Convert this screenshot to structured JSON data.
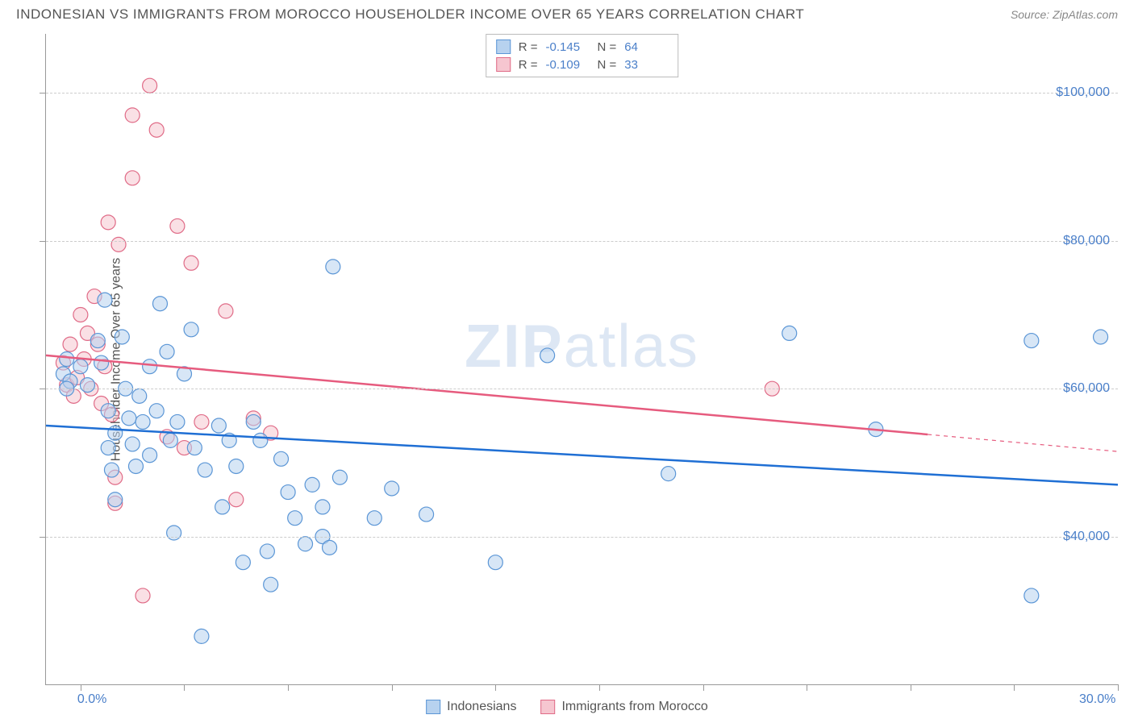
{
  "title": "INDONESIAN VS IMMIGRANTS FROM MOROCCO HOUSEHOLDER INCOME OVER 65 YEARS CORRELATION CHART",
  "source": "Source: ZipAtlas.com",
  "watermark": "ZIPatlas",
  "y_axis_title": "Householder Income Over 65 years",
  "colors": {
    "series_a_fill": "#b7d2ef",
    "series_a_stroke": "#5b96d6",
    "series_a_line": "#1f6fd4",
    "series_b_fill": "#f6c6d0",
    "series_b_stroke": "#e06b87",
    "series_b_line": "#e65b7e",
    "grid": "#cccccc",
    "axis": "#999999",
    "tick_text": "#4a7fc9",
    "text": "#555555"
  },
  "chart": {
    "type": "scatter",
    "xlim": [
      -1,
      30
    ],
    "ylim": [
      20000,
      108000
    ],
    "x_ticks": [
      0,
      3,
      6,
      9,
      12,
      15,
      18,
      21,
      24,
      27,
      30
    ],
    "x_tick_labels": {
      "0": "0.0%",
      "30": "30.0%"
    },
    "y_grid": [
      40000,
      60000,
      80000,
      100000
    ],
    "y_grid_labels": [
      "$40,000",
      "$60,000",
      "$80,000",
      "$100,000"
    ],
    "marker_radius": 9,
    "marker_opacity": 0.55,
    "line_width": 2.5
  },
  "stats": {
    "a": {
      "R": "-0.145",
      "N": "64"
    },
    "b": {
      "R": "-0.109",
      "N": "33"
    }
  },
  "legend": {
    "a": "Indonesians",
    "b": "Immigrants from Morocco"
  },
  "trend_lines": {
    "a": {
      "x1": -1,
      "y1": 55000,
      "x2": 30,
      "y2": 47000,
      "dash_from": null
    },
    "b": {
      "x1": -1,
      "y1": 64500,
      "x2": 30,
      "y2": 51500,
      "dash_from": 24.5
    }
  },
  "series_a": [
    [
      -0.5,
      62000
    ],
    [
      -0.3,
      61000
    ],
    [
      -0.4,
      60000
    ],
    [
      -0.4,
      64000
    ],
    [
      0.0,
      63000
    ],
    [
      0.2,
      60500
    ],
    [
      0.5,
      66500
    ],
    [
      0.6,
      63500
    ],
    [
      0.7,
      72000
    ],
    [
      0.8,
      57000
    ],
    [
      0.8,
      52000
    ],
    [
      0.9,
      49000
    ],
    [
      1.0,
      45000
    ],
    [
      1.0,
      54000
    ],
    [
      1.2,
      67000
    ],
    [
      1.3,
      60000
    ],
    [
      1.4,
      56000
    ],
    [
      1.5,
      52500
    ],
    [
      1.6,
      49500
    ],
    [
      1.7,
      59000
    ],
    [
      1.8,
      55500
    ],
    [
      2.0,
      51000
    ],
    [
      2.0,
      63000
    ],
    [
      2.2,
      57000
    ],
    [
      2.3,
      71500
    ],
    [
      2.5,
      65000
    ],
    [
      2.6,
      53000
    ],
    [
      2.7,
      40500
    ],
    [
      2.8,
      55500
    ],
    [
      3.0,
      62000
    ],
    [
      3.2,
      68000
    ],
    [
      3.3,
      52000
    ],
    [
      3.5,
      26500
    ],
    [
      3.6,
      49000
    ],
    [
      4.0,
      55000
    ],
    [
      4.1,
      44000
    ],
    [
      4.3,
      53000
    ],
    [
      4.5,
      49500
    ],
    [
      4.7,
      36500
    ],
    [
      5.0,
      55500
    ],
    [
      5.2,
      53000
    ],
    [
      5.4,
      38000
    ],
    [
      5.5,
      33500
    ],
    [
      5.8,
      50500
    ],
    [
      6.0,
      46000
    ],
    [
      6.2,
      42500
    ],
    [
      6.5,
      39000
    ],
    [
      6.7,
      47000
    ],
    [
      7.0,
      44000
    ],
    [
      7.0,
      40000
    ],
    [
      7.2,
      38500
    ],
    [
      7.3,
      76500
    ],
    [
      7.5,
      48000
    ],
    [
      8.5,
      42500
    ],
    [
      9.0,
      46500
    ],
    [
      10.0,
      43000
    ],
    [
      12.0,
      36500
    ],
    [
      13.5,
      64500
    ],
    [
      17.0,
      48500
    ],
    [
      20.5,
      67500
    ],
    [
      23.0,
      54500
    ],
    [
      27.5,
      66500
    ],
    [
      27.5,
      32000
    ],
    [
      29.5,
      67000
    ]
  ],
  "series_b": [
    [
      -0.5,
      63500
    ],
    [
      -0.4,
      60500
    ],
    [
      -0.3,
      66000
    ],
    [
      -0.2,
      59000
    ],
    [
      -0.1,
      61500
    ],
    [
      0.0,
      70000
    ],
    [
      0.1,
      64000
    ],
    [
      0.2,
      67500
    ],
    [
      0.3,
      60000
    ],
    [
      0.4,
      72500
    ],
    [
      0.5,
      66000
    ],
    [
      0.6,
      58000
    ],
    [
      0.7,
      63000
    ],
    [
      0.8,
      82500
    ],
    [
      0.9,
      56500
    ],
    [
      1.0,
      48000
    ],
    [
      1.0,
      44500
    ],
    [
      1.1,
      79500
    ],
    [
      1.5,
      97000
    ],
    [
      1.5,
      88500
    ],
    [
      1.8,
      32000
    ],
    [
      2.0,
      101000
    ],
    [
      2.2,
      95000
    ],
    [
      2.5,
      53500
    ],
    [
      2.8,
      82000
    ],
    [
      3.0,
      52000
    ],
    [
      3.2,
      77000
    ],
    [
      3.5,
      55500
    ],
    [
      4.2,
      70500
    ],
    [
      4.5,
      45000
    ],
    [
      5.0,
      56000
    ],
    [
      5.5,
      54000
    ],
    [
      20.0,
      60000
    ]
  ]
}
